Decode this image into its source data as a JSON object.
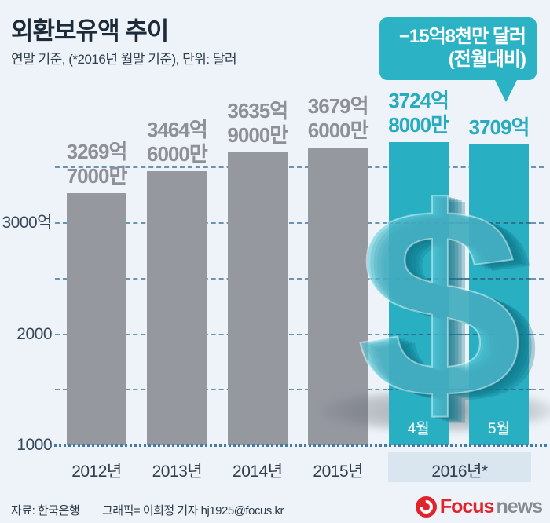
{
  "header": {
    "title": "외환보유액 추이",
    "subtitle": "연말 기준, (*2016년 월말 기준), 단위: 달러"
  },
  "callout": {
    "line1": "−15억8천만 달러",
    "line2": "(전월대비)"
  },
  "chart_data": {
    "type": "bar",
    "title": "외환보유액 추이",
    "note": "연말 기준, (*2016년 월말 기준), 단위: 달러",
    "unit": "억 달러",
    "categories": [
      "2012년",
      "2013년",
      "2014년",
      "2015년",
      "4월",
      "5월"
    ],
    "values": [
      3269.7,
      3464.6,
      3635.9,
      3679.6,
      3724.8,
      3709
    ],
    "bars": [
      {
        "category": "2012년",
        "value": 3269.7,
        "label_lines": [
          "3269억",
          "7000만"
        ],
        "color_key": "gray"
      },
      {
        "category": "2013년",
        "value": 3464.6,
        "label_lines": [
          "3464억",
          "6000만"
        ],
        "color_key": "gray"
      },
      {
        "category": "2014년",
        "value": 3635.9,
        "label_lines": [
          "3635억",
          "9000만"
        ],
        "color_key": "gray"
      },
      {
        "category": "2015년",
        "value": 3679.6,
        "label_lines": [
          "3679억",
          "6000만"
        ],
        "color_key": "gray"
      },
      {
        "category": "4월",
        "value": 3724.8,
        "label_lines": [
          "3724억",
          "8000만"
        ],
        "color_key": "teal"
      },
      {
        "category": "5월",
        "value": 3709,
        "label_lines": [
          "3709억"
        ],
        "color_key": "teal"
      }
    ],
    "group_band_label": "2016년*",
    "y_axis": {
      "min": 1000,
      "max": 3800,
      "ticks": [
        {
          "value": 3000,
          "label": "3000억"
        },
        {
          "value": 2000,
          "label": "2000"
        },
        {
          "value": 1000,
          "label": "1000"
        }
      ],
      "gridline_values": [
        3500,
        3000,
        2500,
        2000,
        1500
      ],
      "grid": "dashed"
    },
    "annotation": {
      "text": "−15억8천만 달러 (전월대비)",
      "applies_to": "5월"
    },
    "legend_position": "none"
  },
  "decor": {
    "dollar_sign": "$"
  },
  "colors": {
    "background": "#edf3f8",
    "teal": "#29afc2",
    "gray_bar": "#9698a0",
    "grid": "#4a7aa0",
    "band_bg": "#d9e6f0",
    "teal_label": "#27abbf",
    "gray_label": "#8d9096",
    "callout_bg": "#2cb2c5",
    "logo_red": "#e2232b",
    "logo_gray": "#878c92"
  },
  "footer": {
    "source": "자료: 한국은행",
    "credit": "그래픽= 이희정 기자 hj1925@focus.kr",
    "logo_focus": "Focus",
    "logo_news": "news"
  }
}
